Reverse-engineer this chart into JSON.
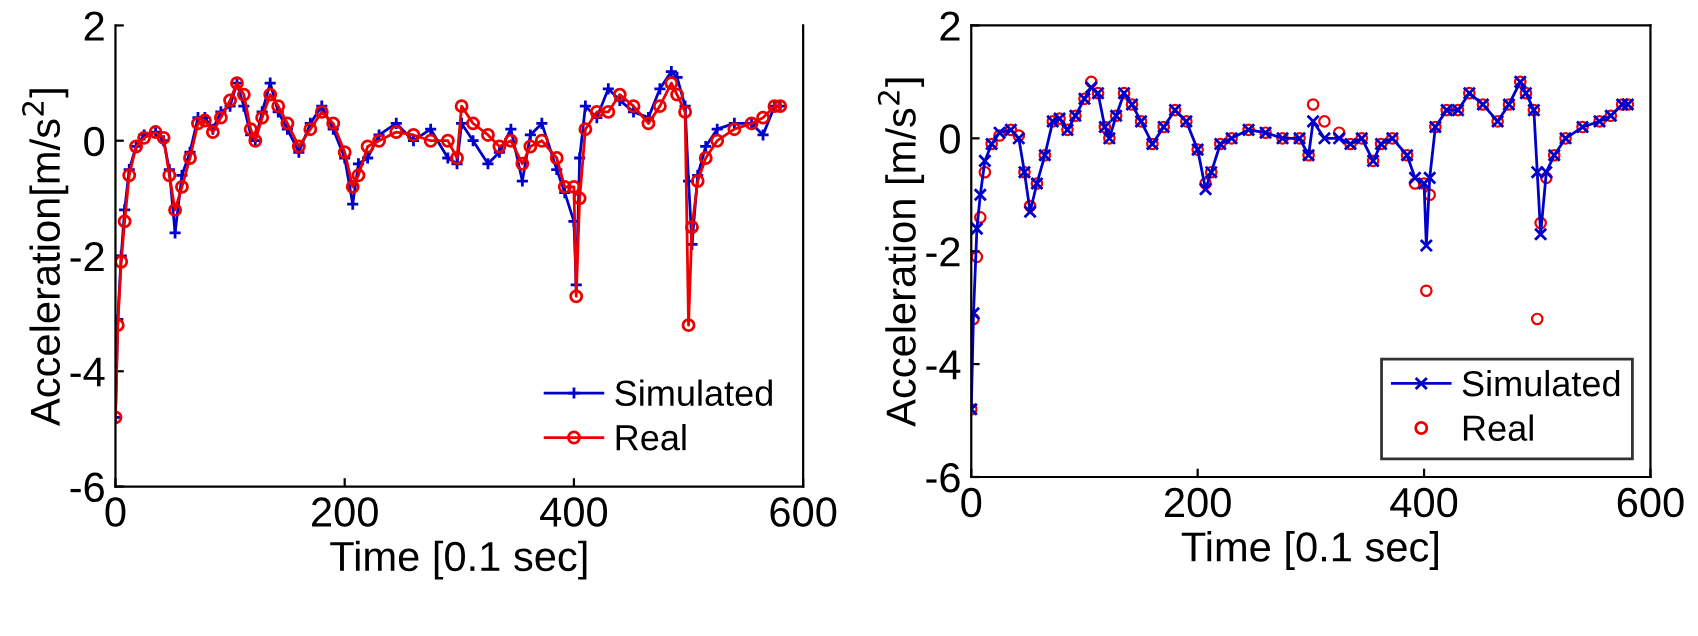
{
  "chart_data": [
    {
      "type": "line",
      "xlabel": "Time [0.1 sec]",
      "ylabel": "Acceleration[m/s$^{2}$]",
      "xlim": [
        0,
        600
      ],
      "ylim": [
        -6,
        2
      ],
      "xticks": [
        0,
        200,
        400,
        600
      ],
      "yticks": [
        -6,
        -4,
        -2,
        0,
        2
      ],
      "grid": false,
      "legend": "bottom right",
      "x": [
        0,
        2,
        5,
        8,
        12,
        18,
        25,
        35,
        42,
        47,
        52,
        58,
        65,
        72,
        78,
        85,
        92,
        100,
        106,
        112,
        118,
        122,
        128,
        135,
        142,
        150,
        160,
        170,
        180,
        190,
        200,
        207,
        212,
        220,
        230,
        245,
        260,
        275,
        290,
        298,
        302,
        312,
        325,
        335,
        345,
        355,
        362,
        372,
        385,
        392,
        400,
        402,
        405,
        410,
        420,
        430,
        440,
        452,
        465,
        475,
        485,
        490,
        497,
        500,
        503,
        508,
        515,
        525,
        540,
        555,
        565,
        575,
        580
      ],
      "series": [
        {
          "name": "Simulated",
          "color": "#0000cc",
          "marker": "cross",
          "values": [
            -4.8,
            -3.1,
            -2.0,
            -1.2,
            -0.5,
            -0.1,
            0.1,
            0.15,
            0.0,
            -0.5,
            -1.6,
            -0.6,
            -0.2,
            0.4,
            0.4,
            0.2,
            0.5,
            0.6,
            1.0,
            0.6,
            0.1,
            0.0,
            0.5,
            1.0,
            0.5,
            0.2,
            -0.2,
            0.3,
            0.6,
            0.2,
            -0.3,
            -1.1,
            -0.4,
            -0.3,
            0.1,
            0.3,
            0.0,
            0.2,
            -0.3,
            -0.4,
            0.3,
            0.0,
            -0.4,
            -0.2,
            0.2,
            -0.7,
            0.1,
            0.3,
            -0.5,
            -0.9,
            -1.4,
            -2.5,
            -0.3,
            0.6,
            0.4,
            0.9,
            0.7,
            0.5,
            0.4,
            0.9,
            1.2,
            1.1,
            0.6,
            -0.7,
            -1.8,
            -0.6,
            -0.1,
            0.2,
            0.3,
            0.3,
            0.1,
            0.6,
            0.6
          ]
        },
        {
          "name": "Real",
          "color": "#ee0000",
          "marker": "circle",
          "values": [
            -4.8,
            -3.2,
            -2.1,
            -1.4,
            -0.6,
            -0.1,
            0.05,
            0.15,
            0.05,
            -0.6,
            -1.2,
            -0.8,
            -0.3,
            0.3,
            0.35,
            0.15,
            0.4,
            0.7,
            1.0,
            0.8,
            0.2,
            0.0,
            0.4,
            0.8,
            0.6,
            0.3,
            -0.1,
            0.2,
            0.5,
            0.3,
            -0.2,
            -0.8,
            -0.6,
            -0.1,
            0.0,
            0.15,
            0.1,
            0.0,
            0.0,
            -0.3,
            0.6,
            0.3,
            0.1,
            -0.1,
            0.0,
            -0.4,
            -0.1,
            0.0,
            -0.3,
            -0.8,
            -0.8,
            -2.7,
            -1.0,
            0.2,
            0.5,
            0.5,
            0.8,
            0.6,
            0.3,
            0.6,
            1.0,
            0.8,
            0.5,
            -3.2,
            -1.5,
            -0.7,
            -0.3,
            0.0,
            0.2,
            0.3,
            0.4,
            0.6,
            0.6
          ]
        }
      ]
    },
    {
      "type": "line",
      "xlabel": "Time [0.1 sec]",
      "ylabel": "Acceleration [m/s$^{2}$]",
      "xlim": [
        0,
        600
      ],
      "ylim": [
        -6,
        2
      ],
      "xticks": [
        0,
        200,
        400,
        600
      ],
      "yticks": [
        -6,
        -4,
        -2,
        0,
        2
      ],
      "grid": false,
      "legend": "bottom right",
      "x": [
        0,
        2,
        5,
        8,
        12,
        18,
        25,
        35,
        42,
        47,
        52,
        58,
        65,
        72,
        78,
        85,
        92,
        100,
        106,
        112,
        118,
        122,
        128,
        135,
        142,
        150,
        160,
        170,
        180,
        190,
        200,
        207,
        212,
        220,
        230,
        245,
        260,
        275,
        290,
        298,
        302,
        312,
        325,
        335,
        345,
        355,
        362,
        372,
        385,
        392,
        400,
        402,
        405,
        410,
        420,
        430,
        440,
        452,
        465,
        475,
        485,
        490,
        497,
        500,
        503,
        508,
        515,
        525,
        540,
        555,
        565,
        575,
        580
      ],
      "series": [
        {
          "name": "Simulated",
          "color": "#0000cc",
          "marker": "cross",
          "values": [
            -4.8,
            -3.1,
            -1.6,
            -1.0,
            -0.4,
            -0.1,
            0.1,
            0.15,
            0.0,
            -0.6,
            -1.3,
            -0.8,
            -0.3,
            0.3,
            0.35,
            0.15,
            0.4,
            0.7,
            0.9,
            0.8,
            0.2,
            0.0,
            0.4,
            0.8,
            0.6,
            0.3,
            -0.1,
            0.2,
            0.5,
            0.3,
            -0.2,
            -0.9,
            -0.6,
            -0.1,
            0.0,
            0.15,
            0.1,
            0.0,
            0.0,
            -0.3,
            0.3,
            0.0,
            0.0,
            -0.1,
            0.0,
            -0.4,
            -0.1,
            0.0,
            -0.3,
            -0.7,
            -0.8,
            -1.9,
            -0.7,
            0.2,
            0.5,
            0.5,
            0.8,
            0.6,
            0.3,
            0.6,
            1.0,
            0.8,
            0.5,
            -0.6,
            -1.7,
            -0.6,
            -0.3,
            0.0,
            0.2,
            0.3,
            0.4,
            0.6,
            0.6
          ]
        },
        {
          "name": "Real",
          "color": "#ee0000",
          "type": "scatter",
          "marker": "circle",
          "values": [
            -4.8,
            -3.2,
            -2.1,
            -1.4,
            -0.6,
            -0.1,
            0.05,
            0.15,
            0.05,
            -0.6,
            -1.2,
            -0.8,
            -0.3,
            0.3,
            0.35,
            0.15,
            0.4,
            0.7,
            1.0,
            0.8,
            0.2,
            0.0,
            0.4,
            0.8,
            0.6,
            0.3,
            -0.1,
            0.2,
            0.5,
            0.3,
            -0.2,
            -0.8,
            -0.6,
            -0.1,
            0.0,
            0.15,
            0.1,
            0.0,
            0.0,
            -0.3,
            0.6,
            0.3,
            0.1,
            -0.1,
            0.0,
            -0.4,
            -0.1,
            0.0,
            -0.3,
            -0.8,
            -0.8,
            -2.7,
            -1.0,
            0.2,
            0.5,
            0.5,
            0.8,
            0.6,
            0.3,
            0.6,
            1.0,
            0.8,
            0.5,
            -3.2,
            -1.5,
            -0.7,
            -0.3,
            0.0,
            0.2,
            0.3,
            0.4,
            0.6,
            0.6
          ]
        }
      ]
    }
  ]
}
